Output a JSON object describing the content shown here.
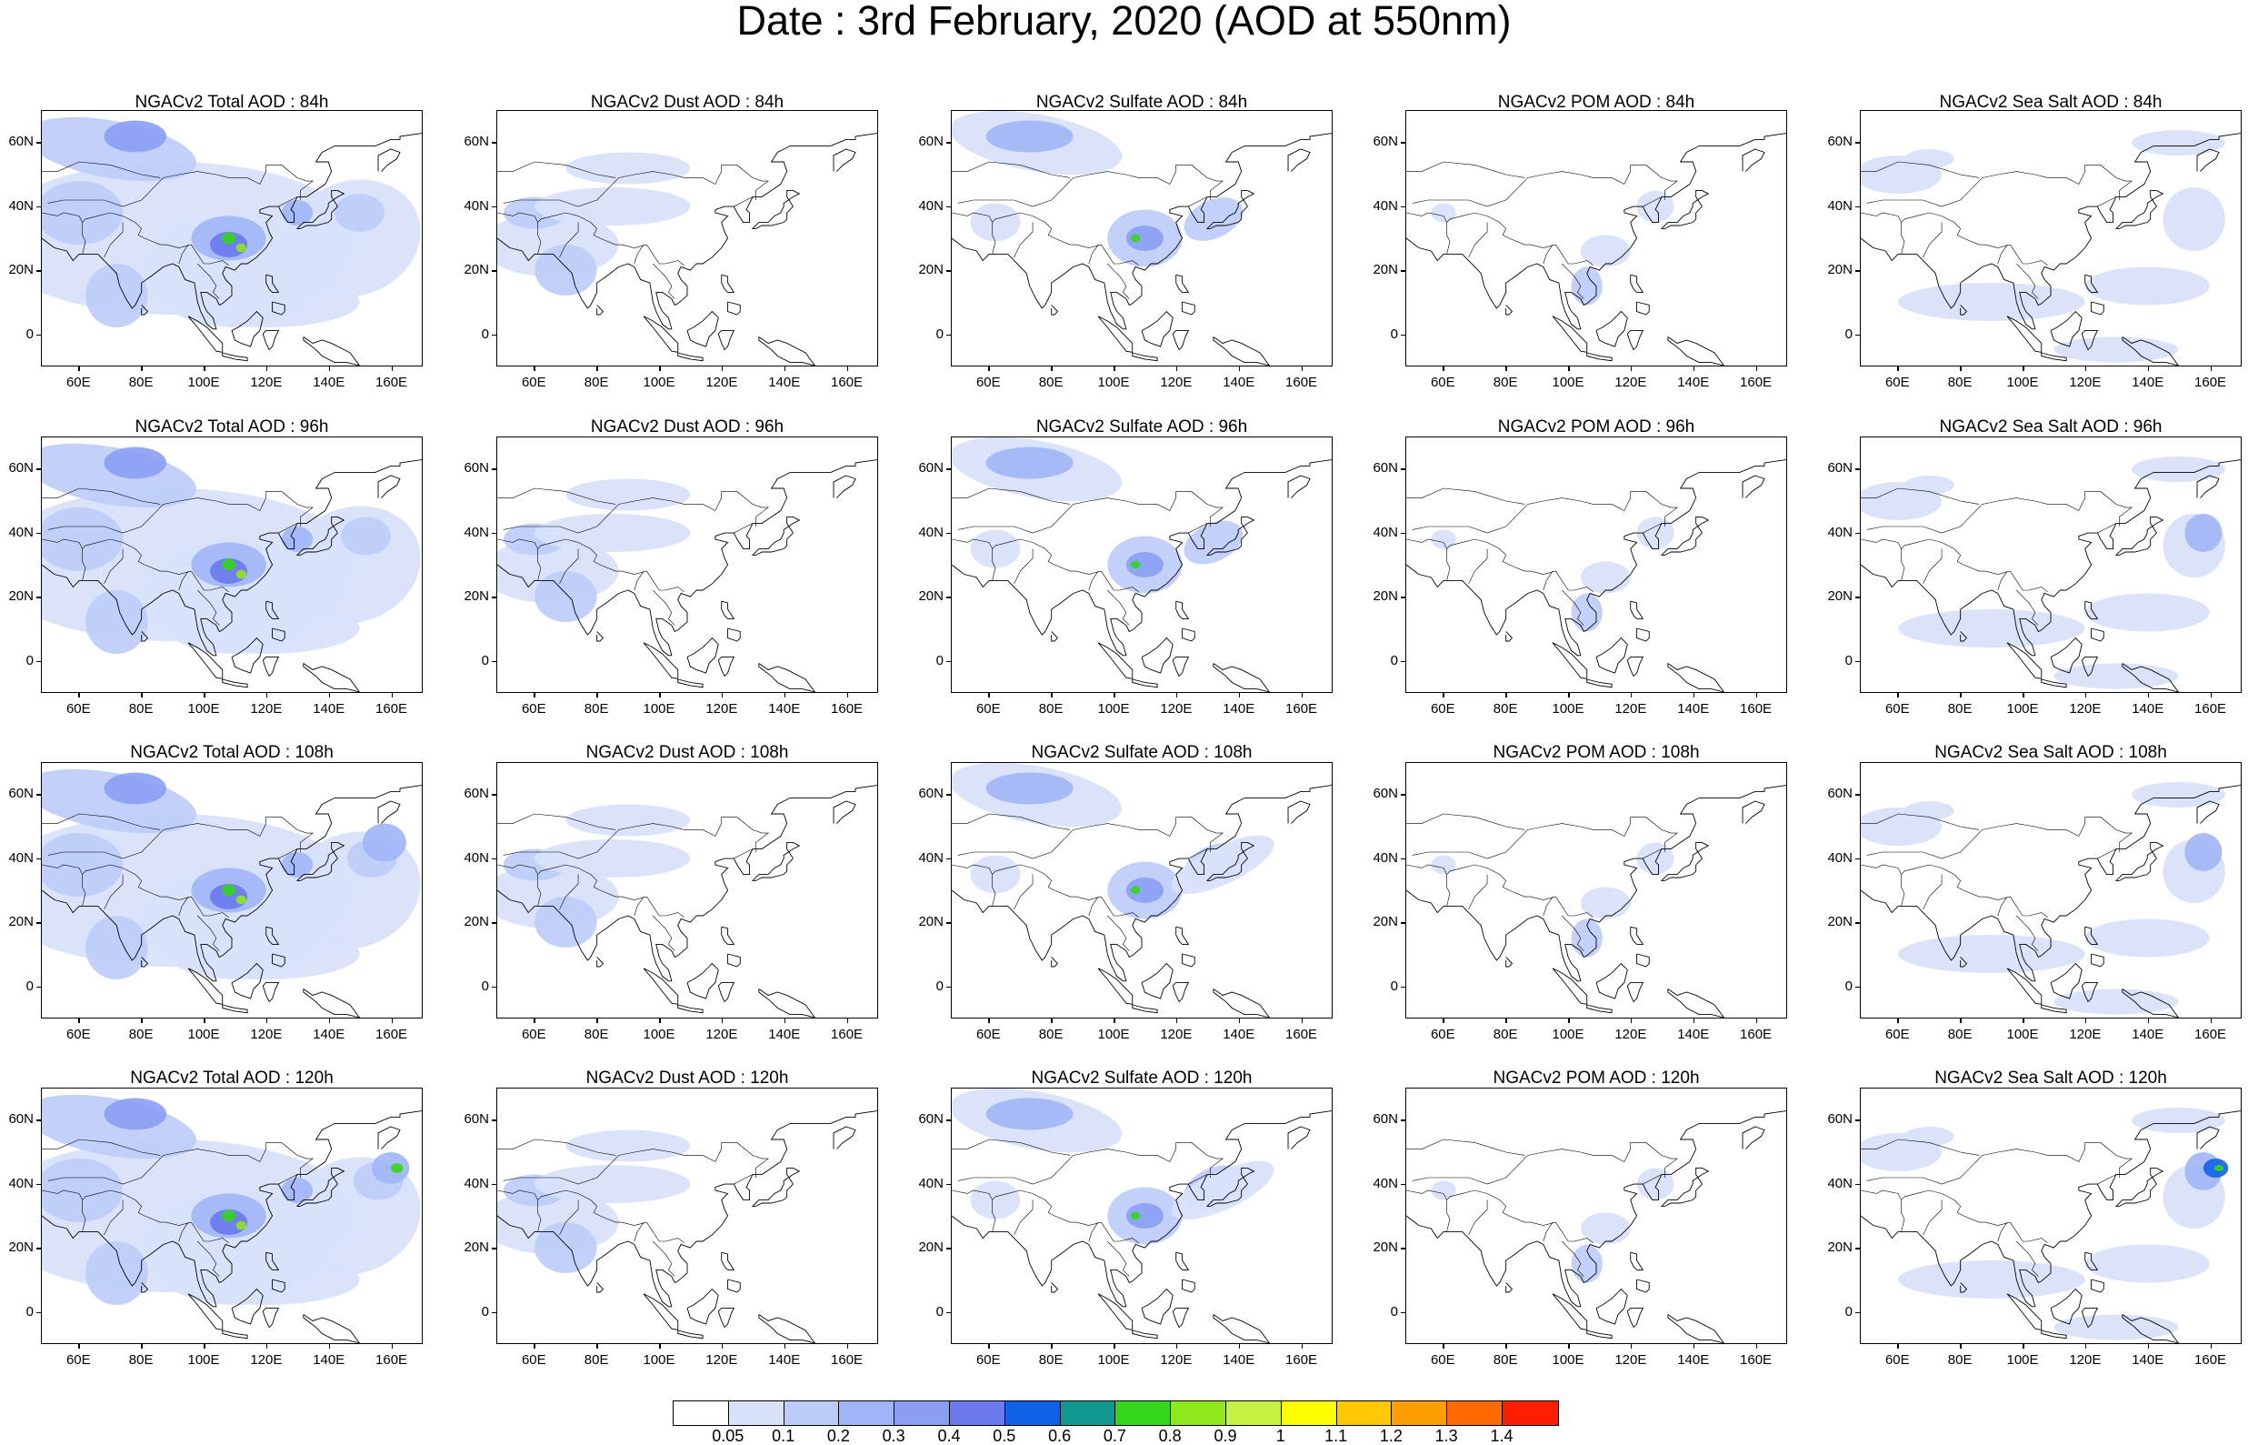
{
  "title": "Date : 3rd February, 2020 (AOD at 550nm)",
  "panels": [
    [
      "NGACv2 Total AOD : 84h",
      "NGACv2 Dust AOD : 84h",
      "NGACv2 Sulfate AOD : 84h",
      "NGACv2 POM AOD : 84h",
      "NGACv2 Sea Salt AOD : 84h"
    ],
    [
      "NGACv2 Total AOD : 96h",
      "NGACv2 Dust AOD : 96h",
      "NGACv2 Sulfate AOD : 96h",
      "NGACv2 POM AOD : 96h",
      "NGACv2 Sea Salt AOD : 96h"
    ],
    [
      "NGACv2 Total AOD : 108h",
      "NGACv2 Dust AOD : 108h",
      "NGACv2 Sulfate AOD : 108h",
      "NGACv2 POM AOD : 108h",
      "NGACv2 Sea Salt AOD : 108h"
    ],
    [
      "NGACv2 Total AOD : 120h",
      "NGACv2 Dust AOD : 120h",
      "NGACv2 Sulfate AOD : 120h",
      "NGACv2 POM AOD : 120h",
      "NGACv2 Sea Salt  AOD : 120h"
    ]
  ],
  "map_axes": {
    "lon_labels": [
      "60E",
      "80E",
      "100E",
      "120E",
      "140E",
      "160E"
    ],
    "lon_values": [
      60,
      80,
      100,
      120,
      140,
      160
    ],
    "lat_labels": [
      "60N",
      "40N",
      "20N",
      "0"
    ],
    "lat_values": [
      60,
      40,
      20,
      0
    ],
    "lon_range": [
      48,
      170
    ],
    "lat_range": [
      -10,
      70
    ]
  },
  "colorbar": {
    "labels": [
      "0.05",
      "0.1",
      "0.2",
      "0.3",
      "0.4",
      "0.5",
      "0.6",
      "0.7",
      "0.8",
      "0.9",
      "1",
      "1.1",
      "1.2",
      "1.3",
      "1.4"
    ],
    "colors": [
      "#ffffff",
      "#d9e2fb",
      "#bcccf9",
      "#a0b5f7",
      "#8a9ef4",
      "#6a79ee",
      "#0f62e8",
      "#109891",
      "#33d61a",
      "#8fe81b",
      "#c4f142",
      "#ffff00",
      "#ffc800",
      "#ff9e00",
      "#ff6a00",
      "#ff1f00"
    ]
  },
  "chart_data": {
    "type": "heatmap",
    "variable": "AOD at 550nm",
    "date": "3rd February, 2020",
    "model": "NGACv2",
    "species": [
      "Total",
      "Dust",
      "Sulfate",
      "POM",
      "Sea Salt"
    ],
    "forecast_hours": [
      "84h",
      "96h",
      "108h",
      "120h"
    ],
    "levels": [
      0.05,
      0.1,
      0.2,
      0.3,
      0.4,
      0.5,
      0.6,
      0.7,
      0.8,
      0.9,
      1,
      1.1,
      1.2,
      1.3,
      1.4
    ],
    "lon_range": [
      48,
      170
    ],
    "lat_range": [
      -10,
      70
    ]
  }
}
